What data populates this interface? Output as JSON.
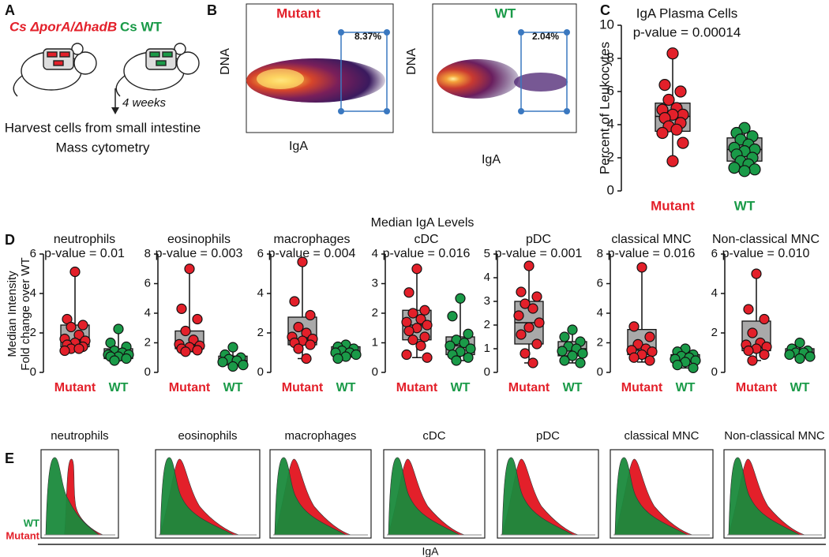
{
  "panel_labels": [
    "A",
    "B",
    "C",
    "D",
    "E"
  ],
  "panel_a": {
    "mutant_strain": "Cs ΔporA/ΔhadB",
    "wt_strain": "Cs WT",
    "duration": "4 weeks",
    "steps": [
      "Harvest cells from small intestine",
      "Mass cytometry"
    ]
  },
  "panel_b": {
    "x_label": "IgA",
    "y_label": "DNA",
    "plots": [
      {
        "title": "Mutant",
        "gate": "8.37%"
      },
      {
        "title": "WT",
        "gate": "2.04%"
      }
    ]
  },
  "panel_d": {
    "title": "Median IgA Levels",
    "y_label": [
      "Median Intensity",
      "Fold change over WT"
    ]
  },
  "panel_e": {
    "x_label": "IgA",
    "legend": [
      "WT",
      "Mutant"
    ],
    "titles": [
      "neutrophils",
      "eosinophils",
      "macrophages",
      "cDC",
      "pDC",
      "classical MNC",
      "Non-classical MNC"
    ]
  },
  "chart_data": [
    {
      "type": "box",
      "title": "IgA Plasma Cells",
      "subtitle": "p-value = 0.00014",
      "y_label": "Percent of Leukocytes",
      "ylim": [
        0,
        10
      ],
      "yticks": [
        0,
        2,
        4,
        6,
        8,
        10
      ],
      "series": [
        {
          "name": "Mutant",
          "color": "#e3202a",
          "box": {
            "min": 1.8,
            "q1": 3.6,
            "median": 4.5,
            "q3": 5.3,
            "max": 8.3
          },
          "values": [
            8.3,
            6.4,
            6.0,
            5.5,
            5.0,
            4.9,
            4.6,
            4.6,
            4.4,
            4.1,
            3.9,
            3.7,
            3.5,
            2.9,
            1.8
          ]
        },
        {
          "name": "WT",
          "color": "#1a9a48",
          "box": {
            "min": 1.2,
            "q1": 1.8,
            "median": 2.5,
            "q3": 3.2,
            "max": 3.8
          },
          "values": [
            3.8,
            3.5,
            3.3,
            3.1,
            2.8,
            2.6,
            2.5,
            2.4,
            2.2,
            2.0,
            1.8,
            1.6,
            1.4,
            1.3,
            1.2
          ]
        }
      ]
    },
    {
      "type": "box",
      "title": "neutrophils",
      "subtitle": "p-value = 0.01",
      "ylim": [
        0,
        6
      ],
      "yticks": [
        0,
        2,
        4,
        6
      ],
      "series": [
        {
          "name": "Mutant",
          "color": "#e3202a",
          "box": {
            "min": 1.1,
            "q1": 1.3,
            "median": 1.6,
            "q3": 2.4,
            "max": 5.1
          },
          "values": [
            5.1,
            2.7,
            2.4,
            2.3,
            1.9,
            1.7,
            1.6,
            1.5,
            1.4,
            1.3,
            1.2,
            1.2,
            1.1
          ]
        },
        {
          "name": "WT",
          "color": "#1a9a48",
          "box": {
            "min": 0.6,
            "q1": 0.7,
            "median": 0.9,
            "q3": 1.2,
            "max": 2.2
          },
          "values": [
            2.2,
            1.5,
            1.3,
            1.1,
            1.0,
            0.9,
            0.9,
            0.8,
            0.8,
            0.7,
            0.6
          ]
        }
      ]
    },
    {
      "type": "box",
      "title": "eosinophils",
      "subtitle": "p-value = 0.003",
      "ylim": [
        0,
        8
      ],
      "yticks": [
        0,
        2,
        4,
        6,
        8
      ],
      "series": [
        {
          "name": "Mutant",
          "color": "#e3202a",
          "box": {
            "min": 1.4,
            "q1": 1.6,
            "median": 1.8,
            "q3": 2.8,
            "max": 7.0
          },
          "values": [
            7.0,
            4.3,
            3.6,
            2.8,
            2.2,
            1.9,
            1.8,
            1.7,
            1.6,
            1.5,
            1.4
          ]
        },
        {
          "name": "WT",
          "color": "#1a9a48",
          "box": {
            "min": 0.4,
            "q1": 0.5,
            "median": 0.8,
            "q3": 1.1,
            "max": 1.7
          },
          "values": [
            1.7,
            1.2,
            1.0,
            0.9,
            0.8,
            0.7,
            0.5,
            0.4
          ]
        }
      ]
    },
    {
      "type": "box",
      "title": "macrophages",
      "subtitle": "p-value = 0.004",
      "ylim": [
        0,
        6
      ],
      "yticks": [
        0,
        2,
        4,
        6
      ],
      "series": [
        {
          "name": "Mutant",
          "color": "#e3202a",
          "box": {
            "min": 0.7,
            "q1": 1.4,
            "median": 1.7,
            "q3": 2.8,
            "max": 5.6
          },
          "values": [
            5.6,
            3.6,
            2.9,
            2.3,
            2.0,
            1.8,
            1.7,
            1.6,
            1.5,
            1.4,
            1.2,
            0.7
          ]
        },
        {
          "name": "WT",
          "color": "#1a9a48",
          "box": {
            "min": 0.7,
            "q1": 0.9,
            "median": 1.0,
            "q3": 1.3,
            "max": 1.4
          },
          "values": [
            1.4,
            1.3,
            1.2,
            1.1,
            1.0,
            1.0,
            0.9,
            0.8,
            0.7
          ]
        }
      ]
    },
    {
      "type": "box",
      "title": "cDC",
      "subtitle": "p-value = 0.016",
      "ylim": [
        0,
        4
      ],
      "yticks": [
        0,
        1,
        2,
        3,
        4
      ],
      "series": [
        {
          "name": "Mutant",
          "color": "#e3202a",
          "box": {
            "min": 0.5,
            "q1": 1.1,
            "median": 1.6,
            "q3": 2.1,
            "max": 3.5
          },
          "values": [
            3.5,
            2.7,
            2.1,
            2.0,
            1.8,
            1.7,
            1.6,
            1.5,
            1.4,
            1.2,
            1.1,
            0.9,
            0.6,
            0.5
          ]
        },
        {
          "name": "WT",
          "color": "#1a9a48",
          "box": {
            "min": 0.4,
            "q1": 0.6,
            "median": 0.9,
            "q3": 1.2,
            "max": 2.5
          },
          "values": [
            2.5,
            1.9,
            1.3,
            1.1,
            1.0,
            0.9,
            0.8,
            0.7,
            0.6,
            0.5,
            0.4
          ]
        }
      ]
    },
    {
      "type": "box",
      "title": "pDC",
      "subtitle": "p-value = 0.001",
      "ylim": [
        0,
        5
      ],
      "yticks": [
        0,
        1,
        2,
        3,
        4,
        5
      ],
      "series": [
        {
          "name": "Mutant",
          "color": "#e3202a",
          "box": {
            "min": 0.4,
            "q1": 1.2,
            "median": 2.1,
            "q3": 3.0,
            "max": 4.5
          },
          "values": [
            4.5,
            3.4,
            3.2,
            2.9,
            2.7,
            2.4,
            2.1,
            1.9,
            1.6,
            1.2,
            0.8,
            0.4
          ]
        },
        {
          "name": "WT",
          "color": "#1a9a48",
          "box": {
            "min": 0.4,
            "q1": 0.7,
            "median": 1.0,
            "q3": 1.3,
            "max": 1.8
          },
          "values": [
            1.8,
            1.5,
            1.3,
            1.1,
            1.0,
            0.9,
            0.8,
            0.7,
            0.5,
            0.4
          ]
        }
      ]
    },
    {
      "type": "box",
      "title": "classical MNC",
      "subtitle": "p-value = 0.016",
      "ylim": [
        0,
        8
      ],
      "yticks": [
        0,
        2,
        4,
        6,
        8
      ],
      "series": [
        {
          "name": "Mutant",
          "color": "#e3202a",
          "box": {
            "min": 0.7,
            "q1": 1.2,
            "median": 1.5,
            "q3": 2.9,
            "max": 7.1
          },
          "values": [
            7.1,
            3.1,
            2.4,
            1.9,
            1.6,
            1.5,
            1.4,
            1.2,
            1.0,
            0.8
          ]
        },
        {
          "name": "WT",
          "color": "#1a9a48",
          "box": {
            "min": 0.3,
            "q1": 0.7,
            "median": 1.0,
            "q3": 1.2,
            "max": 1.6
          },
          "values": [
            1.6,
            1.4,
            1.2,
            1.1,
            1.0,
            0.9,
            0.8,
            0.7,
            0.5,
            0.3
          ]
        }
      ]
    },
    {
      "type": "box",
      "title": "Non-classical MNC",
      "subtitle": "p-value = 0.010",
      "ylim": [
        0,
        6
      ],
      "yticks": [
        0,
        2,
        4,
        6
      ],
      "series": [
        {
          "name": "Mutant",
          "color": "#e3202a",
          "box": {
            "min": 0.6,
            "q1": 1.1,
            "median": 1.3,
            "q3": 2.6,
            "max": 5.0
          },
          "values": [
            5.0,
            3.2,
            2.7,
            2.0,
            1.5,
            1.4,
            1.3,
            1.2,
            1.1,
            0.9,
            0.6
          ]
        },
        {
          "name": "WT",
          "color": "#1a9a48",
          "box": {
            "min": 0.6,
            "q1": 0.8,
            "median": 1.0,
            "q3": 1.2,
            "max": 1.5
          },
          "values": [
            1.5,
            1.2,
            1.1,
            1.0,
            1.0,
            0.9,
            0.8,
            0.7
          ]
        }
      ]
    }
  ]
}
